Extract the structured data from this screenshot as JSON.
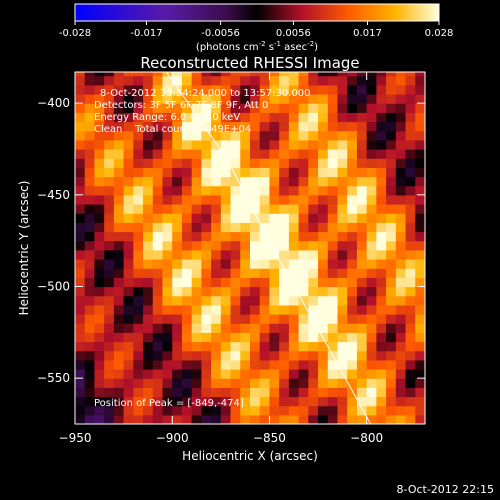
{
  "chart_data": {
    "type": "heatmap",
    "title": "Reconstructed RHESSI Image",
    "xlabel": "Heliocentric X (arcsec)",
    "ylabel": "Heliocentric Y (arcsec)",
    "xlim": [
      -950,
      -770
    ],
    "ylim": [
      -575,
      -383
    ],
    "x_ticks": [
      -950,
      -900,
      -850,
      -800
    ],
    "y_ticks": [
      -400,
      -450,
      -500,
      -550
    ],
    "colorbar": {
      "range": [
        -0.028,
        0.028
      ],
      "ticks": [
        "-0.028",
        "-0.017",
        "-0.0056",
        "0.0056",
        "0.017",
        "0.028"
      ],
      "unit_label": "(photons cm",
      "unit_exp1": "-2",
      "unit_mid": " s",
      "unit_exp2": "-1",
      "unit_mid2": " asec",
      "unit_exp3": "-2",
      "unit_end": ")"
    },
    "annotations": {
      "time_range": "8-Oct-2012 13:54:24.000 to 13:57:30.000",
      "detectors": "Detectors: 3F 5F 6F 7F 8F 9F, Att 0",
      "energy": "Energy Range: 6.0 - 12.0 keV",
      "clean": "Clean    Total counts: 4.49E+04",
      "peak_position": "Position of Peak = [-849,-474]"
    },
    "peak": {
      "x": -849,
      "y": -474
    },
    "limb": [
      [
        -903,
        -383
      ],
      [
        -872,
        -430
      ],
      [
        -848,
        -480
      ],
      [
        -824,
        -525
      ],
      [
        -798,
        -575
      ]
    ],
    "grid": false
  },
  "footer": {
    "timestamp": "8-Oct-2012 22:15"
  }
}
